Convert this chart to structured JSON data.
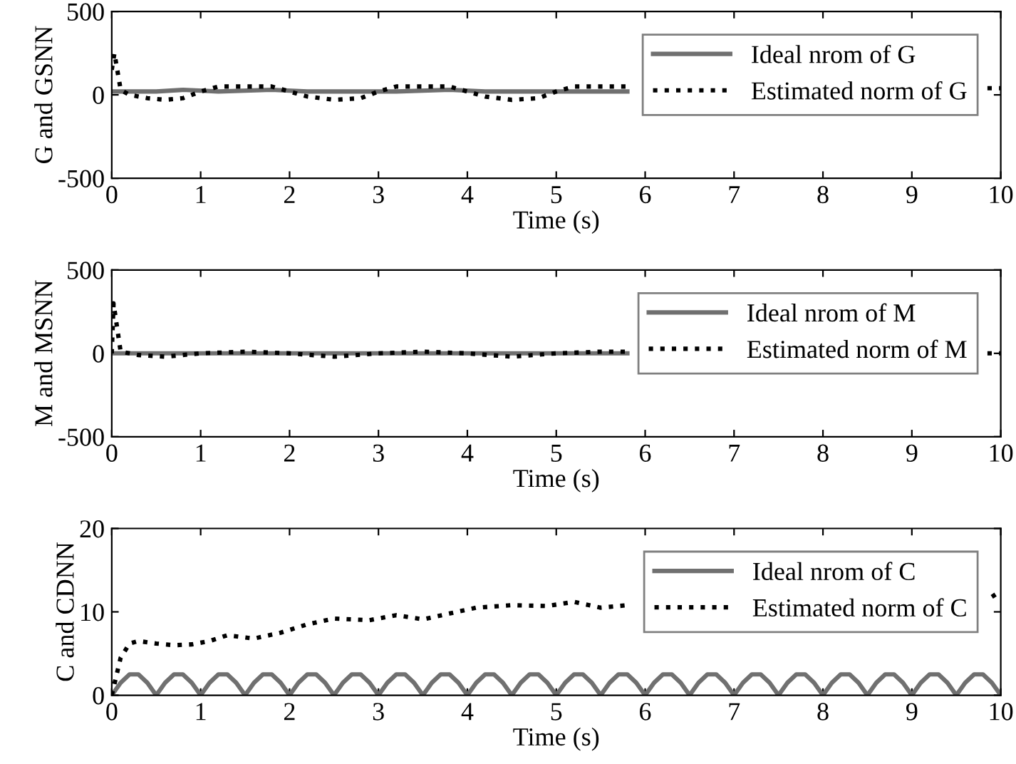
{
  "chart_data": [
    {
      "type": "line",
      "xlabel": "Time (s)",
      "ylabel": "G and GSNN",
      "xlim": [
        0,
        10
      ],
      "ylim": [
        -500,
        500
      ],
      "xticks": [
        0,
        1,
        2,
        3,
        4,
        5,
        6,
        7,
        8,
        9,
        10
      ],
      "yticks": [
        -500,
        0,
        500
      ],
      "legend": "top right",
      "grid": false,
      "series": [
        {
          "name": "Ideal nrom of G",
          "color": "#707070",
          "line_style": "solid",
          "x": [
            0,
            0.5,
            0.8,
            1.2,
            1.8,
            2.2,
            2.8,
            3.2,
            3.8,
            4.2,
            4.8,
            5.2,
            5.8
          ],
          "values": [
            20,
            20,
            30,
            20,
            30,
            20,
            20,
            20,
            30,
            20,
            20,
            20,
            20
          ]
        },
        {
          "name": "Estimated norm of G",
          "color": "#000000",
          "line_style": "dotted",
          "x": [
            0,
            0.03,
            0.1,
            0.2,
            0.4,
            0.6,
            0.8,
            1.0,
            1.2,
            1.5,
            1.8,
            2.0,
            2.2,
            2.5,
            2.8,
            3.0,
            3.2,
            3.5,
            3.8,
            4.0,
            4.2,
            4.5,
            4.8,
            5.0,
            5.2,
            5.5,
            5.8,
            6.0,
            9.85,
            10
          ],
          "values": [
            150,
            250,
            30,
            0,
            -20,
            -30,
            -20,
            20,
            50,
            50,
            50,
            20,
            -10,
            -30,
            -20,
            20,
            50,
            50,
            50,
            20,
            -10,
            -30,
            -20,
            20,
            50,
            50,
            50,
            null,
            40,
            40
          ]
        }
      ]
    },
    {
      "type": "line",
      "xlabel": "Time (s)",
      "ylabel": "M and MSNN",
      "xlim": [
        0,
        10
      ],
      "ylim": [
        -500,
        500
      ],
      "xticks": [
        0,
        1,
        2,
        3,
        4,
        5,
        6,
        7,
        8,
        9,
        10
      ],
      "yticks": [
        -500,
        0,
        500
      ],
      "legend": "top right",
      "grid": false,
      "series": [
        {
          "name": "Ideal nrom of M",
          "color": "#707070",
          "line_style": "solid",
          "x": [
            0,
            5.8
          ],
          "values": [
            0,
            0
          ]
        },
        {
          "name": "Estimated norm of M",
          "color": "#000000",
          "line_style": "dotted",
          "x": [
            0,
            0.02,
            0.1,
            0.3,
            0.6,
            1.0,
            1.5,
            2.0,
            2.5,
            3.0,
            3.5,
            4.0,
            4.5,
            5.0,
            5.5,
            5.8,
            6.0,
            9.85,
            10
          ],
          "values": [
            0,
            300,
            10,
            -10,
            -20,
            0,
            10,
            0,
            -20,
            0,
            10,
            0,
            -20,
            0,
            10,
            10,
            null,
            0,
            0
          ]
        }
      ]
    },
    {
      "type": "line",
      "xlabel": "Time (s)",
      "ylabel": "C and CDNN",
      "xlim": [
        0,
        10
      ],
      "ylim": [
        0,
        20
      ],
      "xticks": [
        0,
        1,
        2,
        3,
        4,
        5,
        6,
        7,
        8,
        9,
        10
      ],
      "yticks": [
        0,
        10,
        20
      ],
      "legend": "top right",
      "grid": false,
      "series": [
        {
          "name": "Ideal nrom of C",
          "color": "#707070",
          "line_style": "solid",
          "x": [
            0,
            0.1,
            0.2,
            0.3,
            0.4,
            0.5,
            0.6,
            0.7,
            0.8,
            0.9,
            1.0,
            1.1,
            1.2,
            1.3,
            1.4,
            1.5,
            1.6,
            1.7,
            1.8,
            1.9,
            2.0,
            2.1,
            2.2,
            2.3,
            2.4,
            2.5,
            2.6,
            2.7,
            2.8,
            2.9,
            3.0,
            3.1,
            3.2,
            3.3,
            3.4,
            3.5,
            3.6,
            3.7,
            3.8,
            3.9,
            4.0,
            4.1,
            4.2,
            4.3,
            4.4,
            4.5,
            4.6,
            4.7,
            4.8,
            4.9,
            5.0,
            5.1,
            5.2,
            5.3,
            5.4,
            5.5,
            5.6,
            5.7,
            5.8,
            5.9,
            6.0,
            6.1,
            6.2,
            6.3,
            6.4,
            6.5,
            6.6,
            6.7,
            6.8,
            6.9,
            7.0,
            7.1,
            7.2,
            7.3,
            7.4,
            7.5,
            7.6,
            7.7,
            7.8,
            7.9,
            8.0,
            8.1,
            8.2,
            8.3,
            8.4,
            8.5,
            8.6,
            8.7,
            8.8,
            8.9,
            9.0,
            9.1,
            9.2,
            9.3,
            9.4,
            9.5,
            9.6,
            9.7,
            9.8,
            9.9,
            10.0
          ],
          "values": [
            0,
            1.5,
            2.5,
            2.5,
            1.5,
            0,
            1.5,
            2.5,
            2.5,
            1.5,
            0,
            1.5,
            2.5,
            2.5,
            1.5,
            0,
            1.5,
            2.5,
            2.5,
            1.5,
            0,
            1.5,
            2.5,
            2.5,
            1.5,
            0,
            1.5,
            2.5,
            2.5,
            1.5,
            0,
            1.5,
            2.5,
            2.5,
            1.5,
            0,
            1.5,
            2.5,
            2.5,
            1.5,
            0,
            1.5,
            2.5,
            2.5,
            1.5,
            0,
            1.5,
            2.5,
            2.5,
            1.5,
            0,
            1.5,
            2.5,
            2.5,
            1.5,
            0,
            1.5,
            2.5,
            2.5,
            1.5,
            0,
            1.5,
            2.5,
            2.5,
            1.5,
            0,
            1.5,
            2.5,
            2.5,
            1.5,
            0,
            1.5,
            2.5,
            2.5,
            1.5,
            0,
            1.5,
            2.5,
            2.5,
            1.5,
            0,
            1.5,
            2.5,
            2.5,
            1.5,
            0,
            1.5,
            2.5,
            2.5,
            1.5,
            0,
            1.5,
            2.5,
            2.5,
            1.5,
            0,
            1.5,
            2.5,
            2.5,
            1.5,
            0
          ]
        },
        {
          "name": "Estimated norm of C",
          "color": "#000000",
          "line_style": "dotted",
          "x": [
            0,
            0.1,
            0.2,
            0.3,
            0.5,
            0.7,
            0.9,
            1.1,
            1.3,
            1.6,
            1.9,
            2.2,
            2.5,
            2.9,
            3.2,
            3.5,
            3.8,
            4.1,
            4.5,
            4.9,
            5.2,
            5.5,
            5.8,
            6.0,
            9.9,
            10
          ],
          "values": [
            0,
            4.5,
            6.2,
            6.5,
            6.2,
            6,
            6.1,
            6.5,
            7.2,
            6.8,
            7.5,
            8.5,
            9.2,
            9,
            9.6,
            9.1,
            9.8,
            10.5,
            10.8,
            10.7,
            11.2,
            10.5,
            10.8,
            null,
            11.8,
            12.5
          ]
        }
      ]
    }
  ]
}
